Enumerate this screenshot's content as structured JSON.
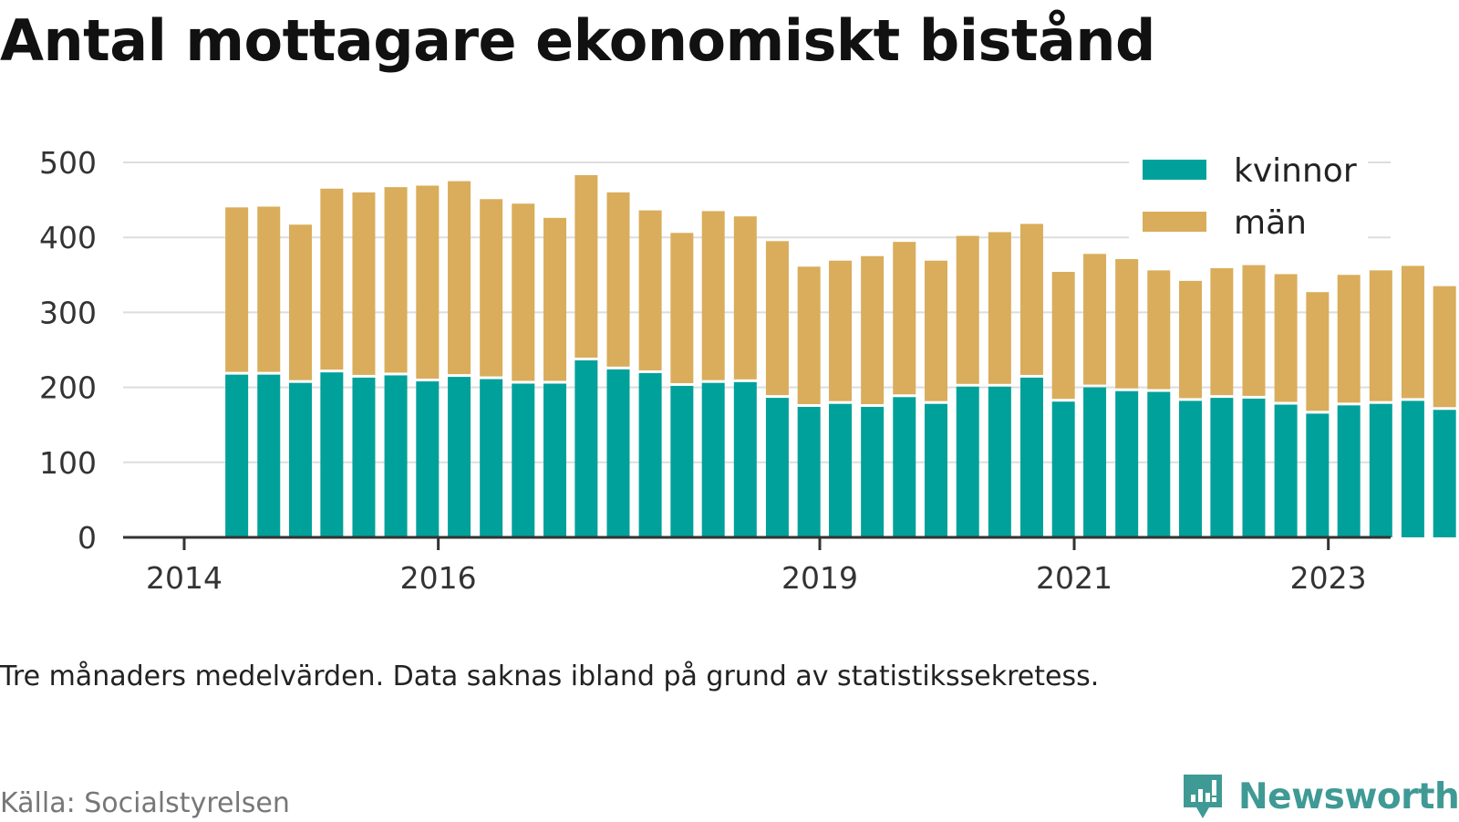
{
  "title": "Antal mottagare ekonomiskt bistånd",
  "note": "Tre månaders medelvärden. Data saknas ibland på grund av statistikssekretess.",
  "source": "Källa: Socialstyrelsen",
  "brand": "Newsworthy",
  "colors": {
    "kvinnor": "#00a19a",
    "man": "#d9ad5b",
    "grid": "#dddddd",
    "axis": "#333333",
    "brand": "#3f9a95"
  },
  "chart_data": {
    "type": "bar",
    "stacked": true,
    "ylim": [
      0,
      500
    ],
    "yticks": [
      0,
      100,
      200,
      300,
      400,
      500
    ],
    "xticks": [
      "2014",
      "2016",
      "2019",
      "2021",
      "2023"
    ],
    "grid": true,
    "legend_position": "top-right",
    "x": [
      "2014-06",
      "2014-09",
      "2014-12",
      "2015-03",
      "2015-06",
      "2015-09",
      "2015-12",
      "2016-03",
      "2016-06",
      "2016-09",
      "2016-12",
      "2017-03",
      "2017-06",
      "2017-09",
      "2017-12",
      "2018-03",
      "2018-06",
      "2018-09",
      "2018-12",
      "2019-03",
      "2019-06",
      "2019-09",
      "2019-12",
      "2020-03",
      "2020-06",
      "2020-09",
      "2020-12",
      "2021-03",
      "2021-06",
      "2021-09",
      "2021-12",
      "2022-03",
      "2022-06",
      "2022-09",
      "2022-12",
      "2023-03",
      "2023-06",
      "2023-09",
      "2023-12"
    ],
    "series": [
      {
        "name": "kvinnor",
        "values": [
          217,
          217,
          206,
          220,
          213,
          216,
          208,
          214,
          211,
          205,
          205,
          236,
          224,
          219,
          202,
          206,
          207,
          186,
          174,
          178,
          174,
          187,
          178,
          201,
          201,
          213,
          181,
          200,
          195,
          194,
          182,
          186,
          185,
          177,
          165,
          176,
          178,
          182,
          170
        ]
      },
      {
        "name": "män",
        "values": [
          223,
          224,
          211,
          245,
          247,
          251,
          261,
          261,
          240,
          240,
          221,
          247,
          236,
          217,
          204,
          229,
          221,
          209,
          187,
          191,
          201,
          207,
          191,
          201,
          206,
          205,
          173,
          178,
          176,
          162,
          160,
          173,
          178,
          174,
          162,
          174,
          178,
          180,
          165
        ]
      }
    ]
  }
}
